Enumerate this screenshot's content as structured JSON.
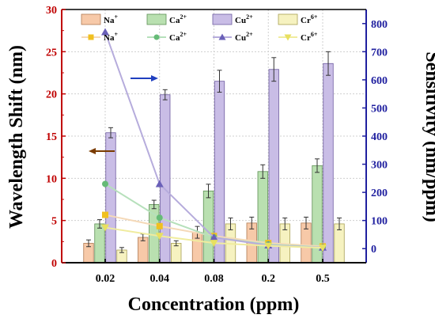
{
  "colors": {
    "left_axis": "#c00000",
    "right_axis": "#1f1f9f",
    "bottom_axis": "#000000",
    "arrow_left": "#7a3b00",
    "arrow_right": "#1f3fbf"
  },
  "chart_data": {
    "type": "bar",
    "xlabel": "Concentration (ppm)",
    "ylabel": "Wavelength Shift (nm)",
    "y2label": "Sensitivity (nm/ppm)",
    "categories": [
      "0.02",
      "0.04",
      "0.08",
      "0.2",
      "0.5"
    ],
    "ylim": [
      0,
      30
    ],
    "y2lim": [
      -50,
      850
    ],
    "yticks": [
      "0",
      "5",
      "10",
      "15",
      "20",
      "25",
      "30"
    ],
    "y2ticks": [
      "0",
      "100",
      "200",
      "300",
      "400",
      "500",
      "600",
      "700",
      "800"
    ],
    "grid": true,
    "bar_series": [
      {
        "name": "Na",
        "sup": "+",
        "color": "#f7c9a8",
        "edge": "#b07a52",
        "values": [
          2.3,
          3.0,
          3.6,
          4.7,
          4.7
        ],
        "errors": [
          0.4,
          0.4,
          0.7,
          0.7,
          0.7
        ]
      },
      {
        "name": "Ca",
        "sup": "2+",
        "color": "#b9e0b0",
        "edge": "#5e8f55",
        "values": [
          4.6,
          6.9,
          8.5,
          10.8,
          11.5
        ],
        "errors": [
          0.5,
          0.5,
          0.8,
          0.8,
          0.8
        ]
      },
      {
        "name": "Cu",
        "sup": "2+",
        "color": "#c9bde6",
        "edge": "#6e5ca0",
        "values": [
          15.4,
          19.9,
          21.5,
          22.9,
          23.6
        ],
        "errors": [
          0.6,
          0.6,
          1.3,
          1.4,
          1.4
        ]
      },
      {
        "name": "Cr",
        "sup": "6+",
        "color": "#f6f2c0",
        "edge": "#a89f52",
        "values": [
          1.5,
          2.3,
          4.6,
          4.6,
          4.6
        ],
        "errors": [
          0.3,
          0.3,
          0.7,
          0.7,
          0.7
        ]
      }
    ],
    "line_series": [
      {
        "name": "Na",
        "sup": "+",
        "color": "#f0c020",
        "line": "#f5d9b8",
        "marker": "square",
        "values": [
          120,
          80,
          45,
          20,
          8
        ]
      },
      {
        "name": "Ca",
        "sup": "2+",
        "color": "#66bb77",
        "line": "#b6e0bb",
        "marker": "circle",
        "values": [
          230,
          110,
          40,
          15,
          5
        ]
      },
      {
        "name": "Cu",
        "sup": "2+",
        "color": "#6a60b8",
        "line": "#b6acdc",
        "marker": "triangle",
        "values": [
          770,
          230,
          40,
          12,
          4
        ]
      },
      {
        "name": "Cr",
        "sup": "6+",
        "color": "#e8e060",
        "line": "#f0ec9e",
        "marker": "triangle-down",
        "values": [
          75,
          45,
          20,
          10,
          3
        ]
      }
    ],
    "legend_position": "top"
  }
}
